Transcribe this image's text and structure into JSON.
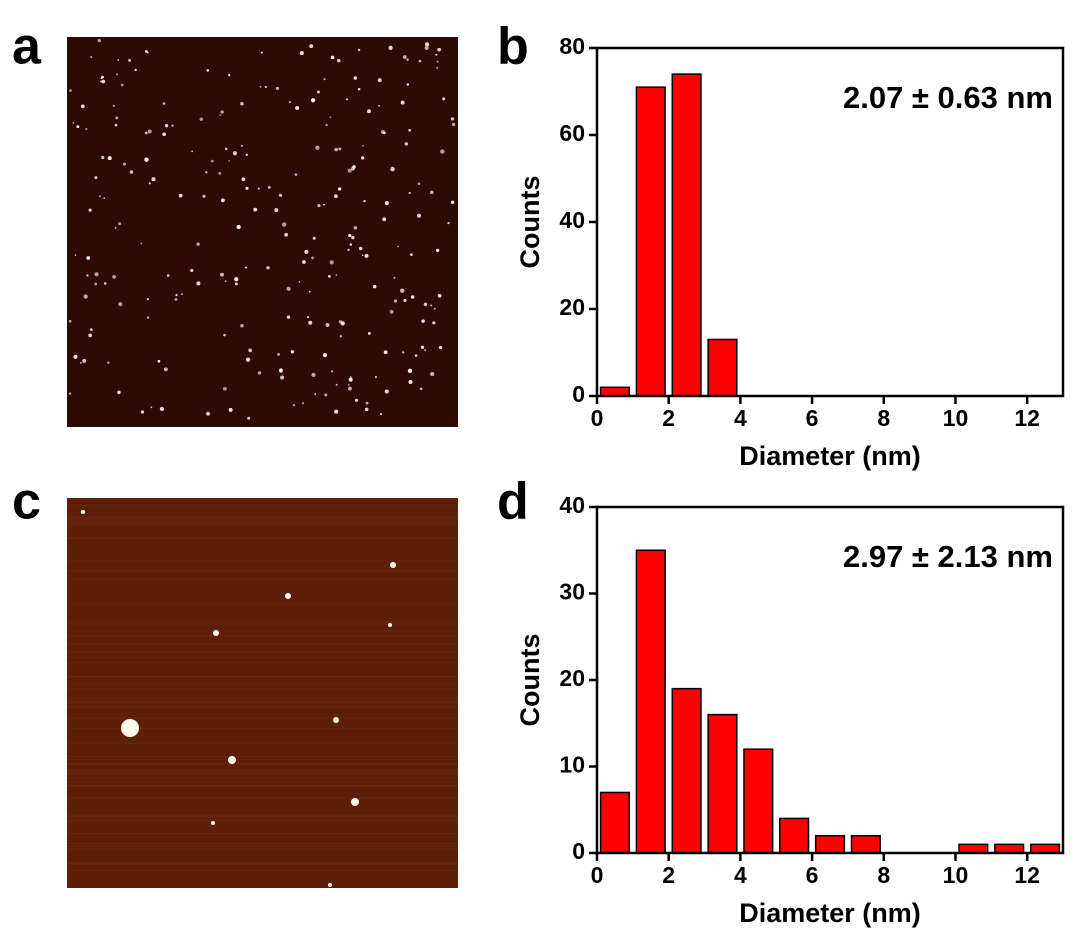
{
  "images": [
    {
      "panel": "a"
    },
    {
      "panel": "c"
    }
  ],
  "chart_data": [
    {
      "type": "histogram",
      "panel": "b",
      "annotation": "2.07 ± 0.63 nm",
      "x_label": "Diameter (nm)",
      "y_label": "Counts",
      "bins": [
        0,
        1,
        2,
        3,
        4
      ],
      "values": [
        2,
        71,
        74,
        13
      ],
      "color": "#ff0000",
      "xlim": [
        0,
        13
      ],
      "xticks": [
        0,
        2,
        4,
        6,
        8,
        10,
        12
      ],
      "ylim": [
        0,
        80
      ],
      "yticks": [
        0,
        20,
        40,
        60,
        80
      ]
    },
    {
      "type": "histogram",
      "panel": "d",
      "annotation": "2.97 ± 2.13 nm",
      "x_label": "Diameter (nm)",
      "y_label": "Counts",
      "bins": [
        0,
        1,
        2,
        3,
        4,
        5,
        6,
        7,
        8,
        9,
        10,
        11,
        12,
        13
      ],
      "values": [
        7,
        35,
        19,
        16,
        12,
        4,
        2,
        2,
        0,
        0,
        1,
        1,
        1
      ],
      "color": "#ff0000",
      "xlim": [
        0,
        13
      ],
      "xticks": [
        0,
        2,
        4,
        6,
        8,
        10,
        12
      ],
      "ylim": [
        0,
        40
      ],
      "yticks": [
        0,
        10,
        20,
        30,
        40
      ]
    }
  ]
}
